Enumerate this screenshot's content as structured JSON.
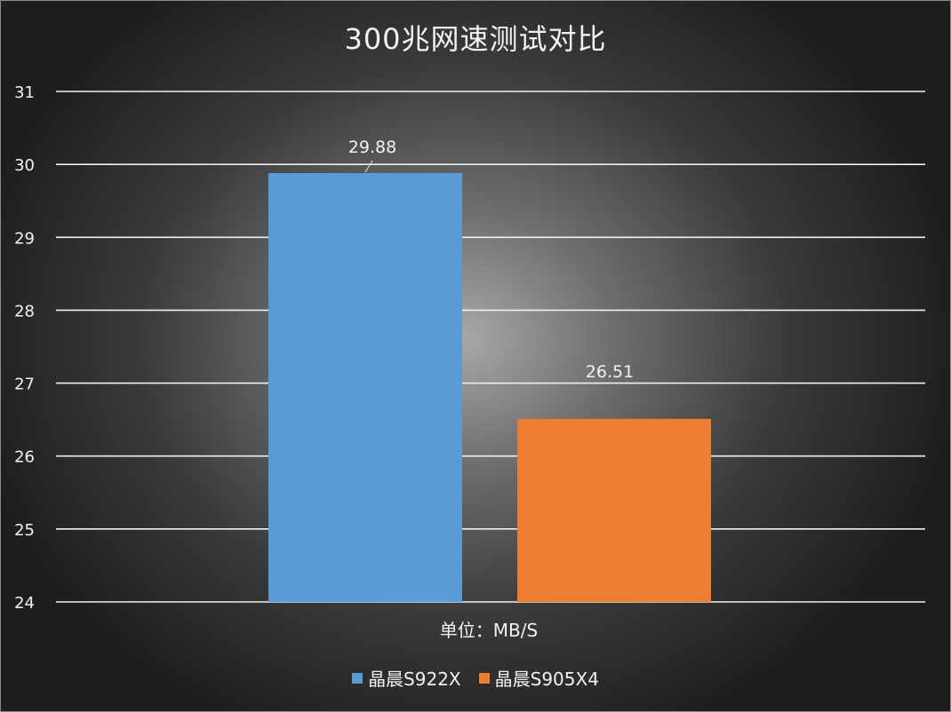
{
  "chart_data": {
    "type": "bar",
    "title": "300兆网速测试对比",
    "xlabel": "单位：MB/S",
    "ylabel": "",
    "ylim": [
      24,
      31
    ],
    "yticks": [
      "24",
      "25",
      "26",
      "27",
      "28",
      "29",
      "30",
      "31"
    ],
    "categories": [
      "晶晨S922X",
      "晶晨S905X4"
    ],
    "values": [
      29.88,
      26.51
    ],
    "data_labels": [
      "29.88",
      "26.51"
    ],
    "colors": [
      "#5b9bd5",
      "#ed7d31"
    ],
    "legend": [
      "晶晨S922X",
      "晶晨S905X4"
    ],
    "legend_position": "bottom",
    "grid": true
  }
}
